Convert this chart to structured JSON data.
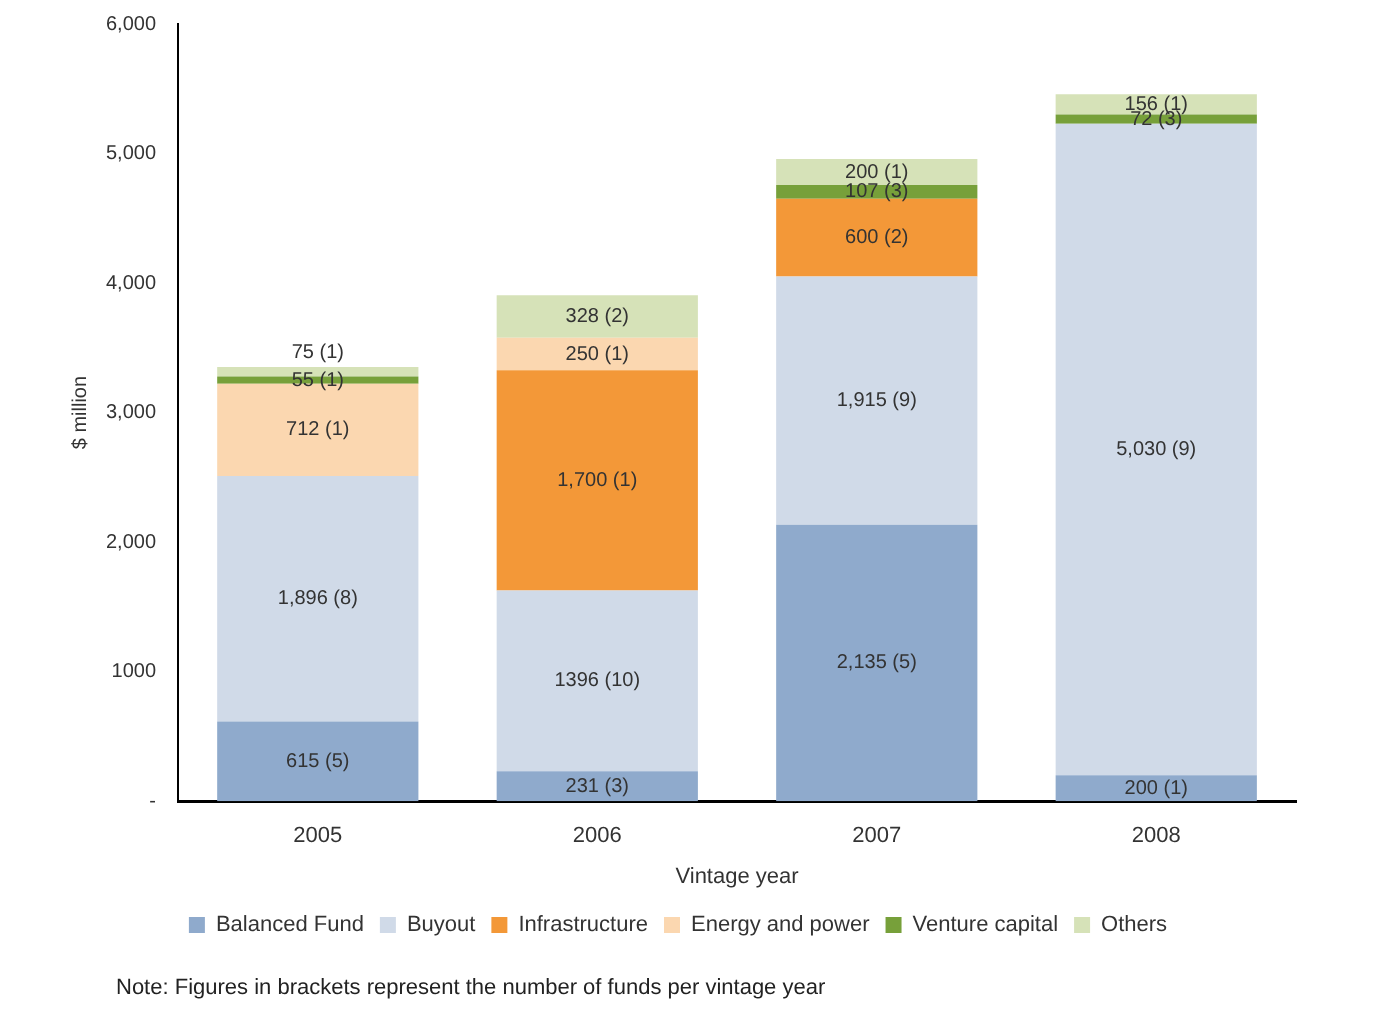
{
  "chart_data": {
    "type": "bar",
    "stacked": true,
    "xlabel": "Vintage year",
    "ylabel": "$ million",
    "categories": [
      "2005",
      "2006",
      "2007",
      "2008"
    ],
    "series": [
      {
        "name": "Balanced Fund",
        "color": "#8faacc",
        "values": [
          615,
          231,
          2135,
          200
        ],
        "value_labels": [
          "615 (5)",
          "231 (3)",
          "2,135 (5)",
          "200 (1)"
        ]
      },
      {
        "name": "Buyout",
        "color": "#d0dae8",
        "values": [
          1896,
          1396,
          1915,
          5030
        ],
        "value_labels": [
          "1,896 (8)",
          "1396 (10)",
          "1,915 (9)",
          "5,030 (9)"
        ]
      },
      {
        "name": "Infrastructure",
        "color": "#f39838",
        "values": [
          null,
          1700,
          600,
          null
        ],
        "value_labels": [
          null,
          "1,700 (1)",
          "600 (2)",
          null
        ]
      },
      {
        "name": "Energy and power",
        "color": "#fbd7b0",
        "values": [
          712,
          250,
          null,
          null
        ],
        "value_labels": [
          "712 (1)",
          "250 (1)",
          null,
          null
        ]
      },
      {
        "name": "Venture capital",
        "color": "#77a03a",
        "values": [
          55,
          null,
          107,
          72
        ],
        "value_labels": [
          "55 (1)",
          null,
          "107 (3)",
          "72 (3)"
        ]
      },
      {
        "name": "Others",
        "color": "#d6e2b8",
        "values": [
          75,
          328,
          200,
          156
        ],
        "value_labels": [
          "75 (1)",
          "328 (2)",
          "200 (1)",
          "156 (1)"
        ]
      }
    ],
    "ylim": [
      0,
      6000
    ],
    "yticks": [
      {
        "value": 0,
        "label": "-"
      },
      {
        "value": 1000,
        "label": "1000"
      },
      {
        "value": 2000,
        "label": "2,000"
      },
      {
        "value": 3000,
        "label": "3,000"
      },
      {
        "value": 4000,
        "label": "4,000"
      },
      {
        "value": 5000,
        "label": "5,000"
      },
      {
        "value": 6000,
        "label": "6,000"
      }
    ],
    "grid": false,
    "legend": "bottom",
    "annotations": [
      "Note: Figures in brackets represent the number of funds per vintage year"
    ]
  }
}
